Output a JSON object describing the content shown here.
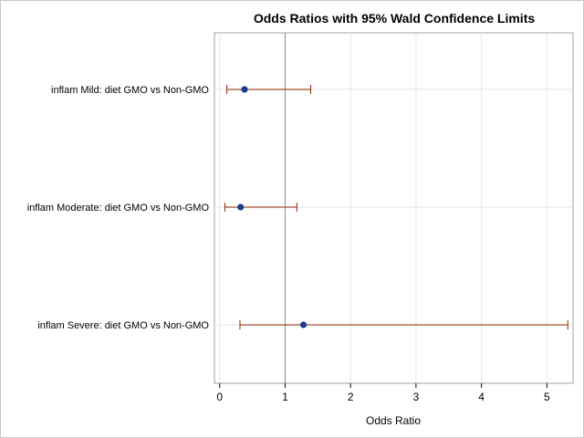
{
  "chart_data": {
    "type": "scatter",
    "title": "Odds Ratios with 95% Wald Confidence Limits",
    "xlabel": "Odds Ratio",
    "ylabel": "",
    "xlim": [
      -0.08,
      5.4
    ],
    "xticks": [
      0,
      1,
      2,
      3,
      4,
      5
    ],
    "reference_line": 1,
    "grid": true,
    "colors": {
      "marker": "#1a3c8c",
      "interval": "#8b2500",
      "reference": "#8c8c8c",
      "grid": "#e6e6e6"
    },
    "categories": [
      "inflam Mild: diet GMO vs Non-GMO",
      "inflam Moderate: diet GMO vs Non-GMO",
      "inflam Severe: diet GMO vs Non-GMO"
    ],
    "estimates": [
      0.38,
      0.32,
      1.28
    ],
    "lower": [
      0.11,
      0.08,
      0.31
    ],
    "upper": [
      1.39,
      1.18,
      5.32
    ]
  }
}
